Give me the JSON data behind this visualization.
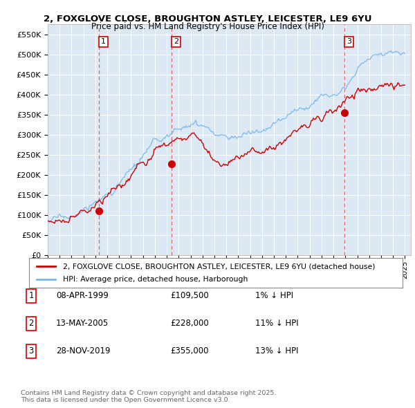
{
  "title_line1": "2, FOXGLOVE CLOSE, BROUGHTON ASTLEY, LEICESTER, LE9 6YU",
  "title_line2": "Price paid vs. HM Land Registry's House Price Index (HPI)",
  "ylim": [
    0,
    575000
  ],
  "yticks": [
    0,
    50000,
    100000,
    150000,
    200000,
    250000,
    300000,
    350000,
    400000,
    450000,
    500000,
    550000
  ],
  "ytick_labels": [
    "£0",
    "£50K",
    "£100K",
    "£150K",
    "£200K",
    "£250K",
    "£300K",
    "£350K",
    "£400K",
    "£450K",
    "£500K",
    "£550K"
  ],
  "background_color": "#ffffff",
  "plot_bg_color": "#dce9f5",
  "grid_color": "#ffffff",
  "legend_entry1": "2, FOXGLOVE CLOSE, BROUGHTON ASTLEY, LEICESTER, LE9 6YU (detached house)",
  "legend_entry2": "HPI: Average price, detached house, Harborough",
  "sale_color": "#cc0000",
  "hpi_color": "#7ab8e8",
  "vline_color": "#e06060",
  "sale_points": [
    {
      "date_num": 1999.27,
      "price": 109500,
      "label": "1"
    },
    {
      "date_num": 2005.37,
      "price": 228000,
      "label": "2"
    },
    {
      "date_num": 2019.91,
      "price": 355000,
      "label": "3"
    }
  ],
  "table_rows": [
    {
      "num": "1",
      "date": "08-APR-1999",
      "price": "£109,500",
      "rel": "1% ↓ HPI"
    },
    {
      "num": "2",
      "date": "13-MAY-2005",
      "price": "£228,000",
      "rel": "11% ↓ HPI"
    },
    {
      "num": "3",
      "date": "28-NOV-2019",
      "price": "£355,000",
      "rel": "13% ↓ HPI"
    }
  ],
  "footnote": "Contains HM Land Registry data © Crown copyright and database right 2025.\nThis data is licensed under the Open Government Licence v3.0.",
  "xmin": 1995.0,
  "xmax": 2025.5
}
